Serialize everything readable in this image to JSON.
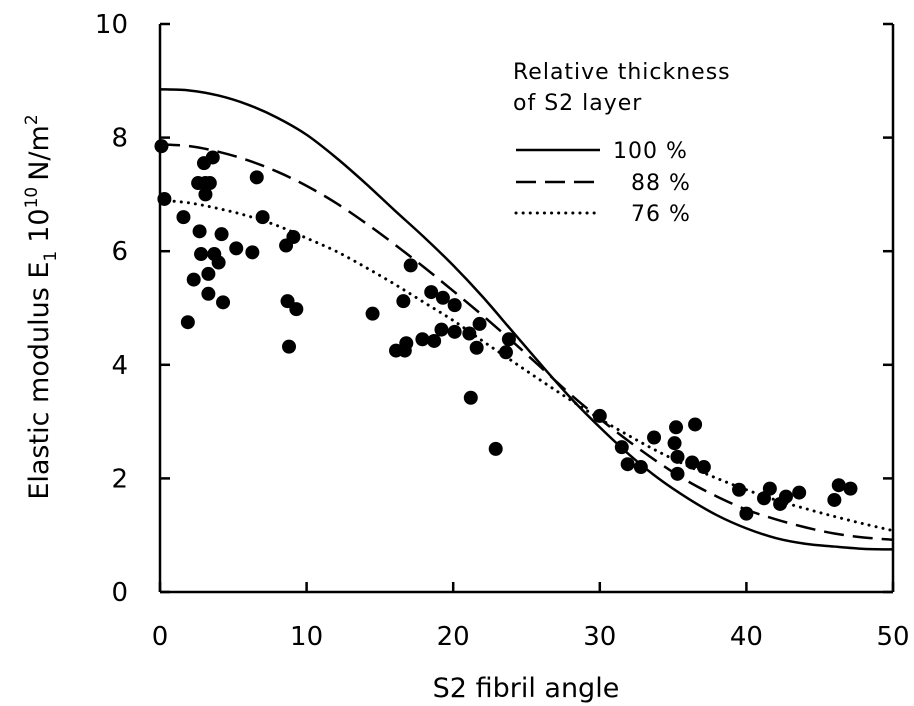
{
  "chart_data": {
    "type": "scatter",
    "xlabel": "S2 fibril angle",
    "ylabel": {
      "main": "Elastic modulus E",
      "subscript": "1",
      "scale_base": "10",
      "scale_exp": "10",
      "unit": "N/m",
      "unit_exp": "2"
    },
    "xlim": [
      0,
      50
    ],
    "ylim": [
      0,
      10
    ],
    "x_ticks": [
      0,
      10,
      20,
      30,
      40,
      50
    ],
    "y_ticks": [
      0,
      2,
      4,
      6,
      8,
      10
    ],
    "grid": false,
    "legend": {
      "position": "top-right",
      "title_line1": "Relative thickness",
      "title_line2": "of S2 layer",
      "entries": [
        "100 %",
        "88 %",
        "76 %"
      ]
    },
    "curves": [
      {
        "name": "100 %",
        "style": "solid",
        "x": [
          0,
          2,
          4,
          6,
          8,
          10,
          12,
          14,
          16,
          18,
          20,
          22,
          24,
          26,
          28,
          30,
          32,
          34,
          36,
          38,
          40,
          42,
          44,
          46,
          48,
          50
        ],
        "y": [
          8.85,
          8.83,
          8.74,
          8.58,
          8.35,
          8.05,
          7.65,
          7.2,
          6.72,
          6.25,
          5.75,
          5.2,
          4.6,
          4.0,
          3.42,
          2.9,
          2.42,
          2.0,
          1.65,
          1.35,
          1.12,
          0.95,
          0.85,
          0.8,
          0.76,
          0.75
        ]
      },
      {
        "name": "88 %",
        "style": "dashed",
        "x": [
          0,
          2,
          4,
          6,
          8,
          10,
          12,
          14,
          16,
          18,
          20,
          22,
          24,
          26,
          28,
          30,
          32,
          34,
          36,
          38,
          40,
          42,
          44,
          46,
          48,
          50
        ],
        "y": [
          7.88,
          7.85,
          7.75,
          7.6,
          7.4,
          7.15,
          6.85,
          6.5,
          6.12,
          5.72,
          5.3,
          4.87,
          4.42,
          3.95,
          3.48,
          3.05,
          2.65,
          2.28,
          1.95,
          1.68,
          1.45,
          1.28,
          1.14,
          1.03,
          0.96,
          0.92
        ]
      },
      {
        "name": "76 %",
        "style": "dotted",
        "x": [
          0,
          2,
          4,
          6,
          8,
          10,
          12,
          14,
          16,
          18,
          20,
          22,
          24,
          26,
          28,
          30,
          32,
          34,
          36,
          38,
          40,
          42,
          44,
          46,
          48,
          50
        ],
        "y": [
          6.9,
          6.85,
          6.75,
          6.62,
          6.45,
          6.23,
          6.0,
          5.72,
          5.42,
          5.1,
          4.78,
          4.42,
          4.07,
          3.72,
          3.38,
          3.05,
          2.75,
          2.47,
          2.22,
          2.0,
          1.8,
          1.62,
          1.47,
          1.33,
          1.2,
          1.08
        ]
      }
    ],
    "points": [
      {
        "x": 0.1,
        "y": 7.85
      },
      {
        "x": 0.3,
        "y": 6.92
      },
      {
        "x": 1.6,
        "y": 6.6
      },
      {
        "x": 1.9,
        "y": 4.75
      },
      {
        "x": 2.3,
        "y": 5.5
      },
      {
        "x": 2.6,
        "y": 7.2
      },
      {
        "x": 2.7,
        "y": 6.35
      },
      {
        "x": 2.8,
        "y": 5.95
      },
      {
        "x": 3.0,
        "y": 7.55
      },
      {
        "x": 3.1,
        "y": 7.2
      },
      {
        "x": 3.1,
        "y": 7.0
      },
      {
        "x": 3.3,
        "y": 5.6
      },
      {
        "x": 3.3,
        "y": 5.25
      },
      {
        "x": 3.4,
        "y": 7.2
      },
      {
        "x": 3.6,
        "y": 7.65
      },
      {
        "x": 3.7,
        "y": 5.95
      },
      {
        "x": 4.0,
        "y": 5.8
      },
      {
        "x": 4.2,
        "y": 6.3
      },
      {
        "x": 4.3,
        "y": 5.1
      },
      {
        "x": 5.2,
        "y": 6.05
      },
      {
        "x": 6.3,
        "y": 5.98
      },
      {
        "x": 6.6,
        "y": 7.3
      },
      {
        "x": 7.0,
        "y": 6.6
      },
      {
        "x": 8.6,
        "y": 6.1
      },
      {
        "x": 8.7,
        "y": 5.12
      },
      {
        "x": 8.8,
        "y": 4.32
      },
      {
        "x": 9.1,
        "y": 6.25
      },
      {
        "x": 9.3,
        "y": 4.98
      },
      {
        "x": 14.5,
        "y": 4.9
      },
      {
        "x": 16.1,
        "y": 4.25
      },
      {
        "x": 16.6,
        "y": 5.12
      },
      {
        "x": 16.7,
        "y": 4.25
      },
      {
        "x": 16.8,
        "y": 4.38
      },
      {
        "x": 17.1,
        "y": 5.75
      },
      {
        "x": 17.9,
        "y": 4.45
      },
      {
        "x": 18.5,
        "y": 5.28
      },
      {
        "x": 18.7,
        "y": 4.42
      },
      {
        "x": 19.2,
        "y": 4.62
      },
      {
        "x": 19.3,
        "y": 5.18
      },
      {
        "x": 20.1,
        "y": 5.05
      },
      {
        "x": 20.1,
        "y": 4.58
      },
      {
        "x": 21.1,
        "y": 4.55
      },
      {
        "x": 21.2,
        "y": 3.42
      },
      {
        "x": 21.6,
        "y": 4.3
      },
      {
        "x": 21.8,
        "y": 4.72
      },
      {
        "x": 22.9,
        "y": 2.52
      },
      {
        "x": 23.6,
        "y": 4.22
      },
      {
        "x": 23.8,
        "y": 4.45
      },
      {
        "x": 30.0,
        "y": 3.1
      },
      {
        "x": 31.5,
        "y": 2.55
      },
      {
        "x": 31.9,
        "y": 2.25
      },
      {
        "x": 32.8,
        "y": 2.2
      },
      {
        "x": 33.7,
        "y": 2.72
      },
      {
        "x": 35.1,
        "y": 2.62
      },
      {
        "x": 35.2,
        "y": 2.9
      },
      {
        "x": 35.3,
        "y": 2.38
      },
      {
        "x": 35.3,
        "y": 2.08
      },
      {
        "x": 36.3,
        "y": 2.28
      },
      {
        "x": 36.5,
        "y": 2.95
      },
      {
        "x": 37.1,
        "y": 2.2
      },
      {
        "x": 39.5,
        "y": 1.8
      },
      {
        "x": 40.0,
        "y": 1.38
      },
      {
        "x": 41.2,
        "y": 1.65
      },
      {
        "x": 41.6,
        "y": 1.82
      },
      {
        "x": 42.3,
        "y": 1.55
      },
      {
        "x": 42.7,
        "y": 1.68
      },
      {
        "x": 43.6,
        "y": 1.75
      },
      {
        "x": 46.0,
        "y": 1.62
      },
      {
        "x": 46.3,
        "y": 1.88
      },
      {
        "x": 47.1,
        "y": 1.82
      }
    ]
  }
}
